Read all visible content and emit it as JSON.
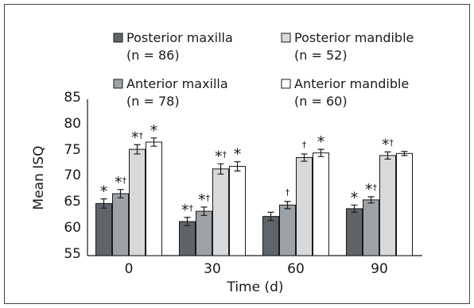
{
  "chart_data": {
    "type": "bar",
    "xlabel": "Time (d)",
    "ylabel": "Mean ISQ",
    "ylim": [
      55,
      85
    ],
    "yticks": [
      55,
      60,
      65,
      70,
      75,
      80,
      85
    ],
    "categories": [
      "0",
      "30",
      "60",
      "90"
    ],
    "grid": false,
    "legend_position": "top",
    "series": [
      {
        "name": "Posterior maxilla",
        "n_label": "(n = 86)",
        "color": "#5f6468",
        "values": [
          65.1,
          61.6,
          62.6,
          64.1
        ],
        "errors": [
          0.9,
          0.8,
          0.8,
          0.7
        ],
        "markers": [
          "*",
          "*†",
          "",
          "*"
        ]
      },
      {
        "name": "Anterior maxilla",
        "n_label": "(n = 78)",
        "color": "#9da2a6",
        "values": [
          67.0,
          63.6,
          64.8,
          65.8
        ],
        "errors": [
          0.8,
          0.8,
          0.7,
          0.6
        ],
        "markers": [
          "*†",
          "*†",
          "†",
          "*†"
        ]
      },
      {
        "name": "Posterior mandible",
        "n_label": "(n = 52)",
        "color": "#d7d9db",
        "values": [
          75.6,
          71.8,
          74.0,
          74.4
        ],
        "errors": [
          0.9,
          1.0,
          0.7,
          0.7
        ],
        "markers": [
          "*†",
          "*†",
          "†",
          "*†"
        ]
      },
      {
        "name": "Anterior mandible",
        "n_label": "(n = 60)",
        "color": "#ffffff",
        "values": [
          77.0,
          72.3,
          74.9,
          74.8
        ],
        "errors": [
          0.8,
          0.9,
          0.7,
          0.4
        ],
        "markers": [
          "*",
          "*",
          "*",
          ""
        ]
      }
    ]
  }
}
